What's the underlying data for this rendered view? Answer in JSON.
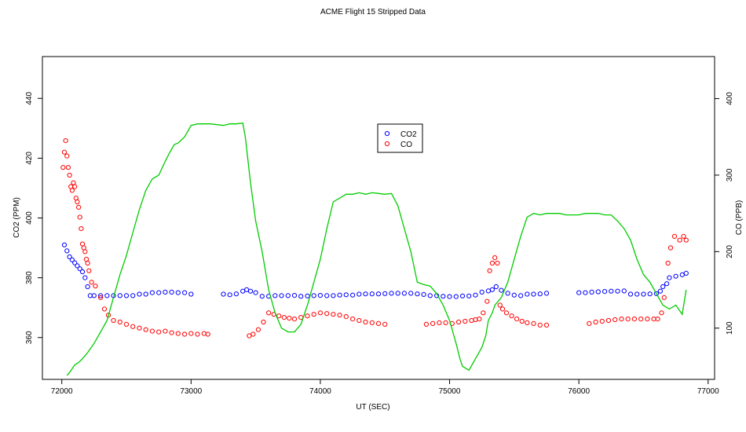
{
  "chart_data": {
    "type": "scatter",
    "title": "ACME Flight  15  Stripped Data",
    "xlabel": "UT (SEC)",
    "ylabel_left": "CO2 (PPM)",
    "ylabel_right": "CO (PPB)",
    "xlim": [
      71850,
      77050
    ],
    "ylim_left": [
      346,
      454
    ],
    "ylim_right": [
      33,
      455
    ],
    "x_ticks": [
      72000,
      73000,
      74000,
      75000,
      76000,
      77000
    ],
    "y_left_ticks": [
      360,
      380,
      400,
      420,
      440
    ],
    "y_right_ticks": [
      100,
      200,
      300,
      400
    ],
    "legend_position": "center-top",
    "legend": [
      {
        "label": "CO2",
        "color": "#0000ff"
      },
      {
        "label": "CO",
        "color": "#ff0000"
      }
    ],
    "series": [
      {
        "name": "CO2",
        "axis": "left",
        "color": "#0000ff",
        "marker": "circle",
        "x": [
          72020,
          72040,
          72060,
          72080,
          72100,
          72120,
          72140,
          72160,
          72180,
          72200,
          72220,
          72250,
          72300,
          72350,
          72400,
          72450,
          72500,
          72550,
          72600,
          72650,
          72700,
          72750,
          72800,
          72850,
          72900,
          72950,
          73000,
          73250,
          73300,
          73350,
          73400,
          73430,
          73460,
          73500,
          73550,
          73600,
          73650,
          73700,
          73750,
          73800,
          73850,
          73900,
          73950,
          74000,
          74050,
          74100,
          74150,
          74200,
          74250,
          74300,
          74350,
          74400,
          74450,
          74500,
          74550,
          74600,
          74650,
          74700,
          74750,
          74800,
          74850,
          74900,
          74950,
          75000,
          75050,
          75100,
          75150,
          75200,
          75250,
          75300,
          75330,
          75360,
          75400,
          75450,
          75500,
          75550,
          75600,
          75650,
          75700,
          75750,
          76000,
          76050,
          76100,
          76150,
          76200,
          76250,
          76300,
          76350,
          76400,
          76450,
          76500,
          76550,
          76600,
          76630,
          76650,
          76680,
          76700,
          76750,
          76800,
          76830
        ],
        "y": [
          391,
          389,
          387,
          386,
          385,
          384,
          383,
          382,
          380,
          377,
          374,
          374,
          374,
          374,
          374,
          374,
          374,
          374,
          374.5,
          374.5,
          375,
          375,
          375.2,
          375.2,
          375,
          375,
          374.5,
          374.5,
          374.3,
          374.6,
          375.5,
          376,
          375.5,
          375,
          373.8,
          373.8,
          374,
          374,
          374,
          374.1,
          373.8,
          373.9,
          374,
          374.1,
          374,
          374,
          374.2,
          374.3,
          374.2,
          374.5,
          374.6,
          374.6,
          374.6,
          374.7,
          374.8,
          374.8,
          374.8,
          374.8,
          374.6,
          374.4,
          374,
          374,
          373.8,
          373.7,
          373.7,
          373.9,
          373.9,
          374.2,
          375.2,
          375.6,
          376,
          377,
          375.8,
          374.8,
          374.2,
          374,
          374.5,
          374.5,
          374.6,
          374.8,
          375,
          375,
          375.2,
          375.3,
          375.4,
          375.5,
          375.5,
          375.6,
          374.5,
          374.5,
          374.5,
          374.6,
          374.7,
          375.5,
          377,
          378,
          380,
          380.5,
          381,
          381.5
        ]
      },
      {
        "name": "CO",
        "axis": "right",
        "color": "#ff0000",
        "marker": "circle",
        "x": [
          72010,
          72020,
          72030,
          72040,
          72050,
          72060,
          72070,
          72080,
          72090,
          72100,
          72110,
          72120,
          72130,
          72140,
          72150,
          72160,
          72170,
          72180,
          72190,
          72200,
          72210,
          72230,
          72260,
          72300,
          72330,
          72360,
          72400,
          72450,
          72500,
          72550,
          72600,
          72650,
          72700,
          72750,
          72800,
          72850,
          72900,
          72950,
          73000,
          73050,
          73100,
          73130,
          73450,
          73480,
          73520,
          73560,
          73600,
          73640,
          73680,
          73720,
          73760,
          73800,
          73850,
          73900,
          73950,
          74000,
          74050,
          74100,
          74150,
          74200,
          74250,
          74300,
          74350,
          74400,
          74450,
          74500,
          74820,
          74870,
          74920,
          74970,
          75020,
          75070,
          75120,
          75170,
          75200,
          75230,
          75260,
          75290,
          75310,
          75330,
          75350,
          75370,
          75390,
          75410,
          75440,
          75480,
          75520,
          75560,
          75600,
          75650,
          75700,
          75750,
          76080,
          76130,
          76180,
          76230,
          76280,
          76330,
          76380,
          76430,
          76480,
          76530,
          76580,
          76610,
          76640,
          76660,
          76690,
          76710,
          76740,
          76780,
          76810,
          76830
        ],
        "y": [
          310,
          330,
          345,
          325,
          310,
          300,
          285,
          280,
          290,
          285,
          270,
          265,
          258,
          245,
          230,
          210,
          205,
          200,
          190,
          185,
          175,
          160,
          155,
          140,
          125,
          117,
          110,
          108,
          105,
          102,
          100,
          98,
          96,
          95,
          96,
          94,
          93,
          92,
          93,
          92,
          93,
          92,
          90,
          92,
          98,
          108,
          120,
          118,
          116,
          114,
          113,
          112,
          114,
          116,
          118,
          120,
          119,
          118,
          117,
          115,
          112,
          110,
          108,
          107,
          106,
          105,
          105,
          106,
          107,
          107,
          106,
          108,
          109,
          110,
          111,
          112,
          120,
          135,
          175,
          185,
          192,
          185,
          130,
          125,
          120,
          116,
          112,
          109,
          107,
          106,
          104,
          104,
          106,
          108,
          109,
          110,
          111,
          112,
          112,
          112,
          112,
          112,
          112,
          112,
          120,
          140,
          185,
          205,
          220,
          215,
          220,
          215
        ]
      },
      {
        "name": "",
        "axis": "right",
        "color": "#00cc00",
        "marker": "line",
        "x": [
          72040,
          72060,
          72080,
          72100,
          72130,
          72160,
          72200,
          72250,
          72300,
          72350,
          72400,
          72450,
          72500,
          72550,
          72600,
          72650,
          72700,
          72750,
          72800,
          72830,
          72870,
          72900,
          72950,
          73000,
          73050,
          73100,
          73150,
          73200,
          73250,
          73300,
          73350,
          73400,
          73420,
          73440,
          73460,
          73500,
          73550,
          73600,
          73650,
          73700,
          73750,
          73800,
          73850,
          73900,
          73950,
          74000,
          74050,
          74100,
          74150,
          74200,
          74250,
          74300,
          74350,
          74400,
          74450,
          74500,
          74550,
          74600,
          74650,
          74700,
          74750,
          74800,
          74850,
          74900,
          74950,
          75000,
          75050,
          75080,
          75100,
          75150,
          75200,
          75250,
          75280,
          75300,
          75330,
          75350,
          75400,
          75450,
          75500,
          75550,
          75600,
          75650,
          75700,
          75750,
          75800,
          75850,
          75900,
          75950,
          76000,
          76050,
          76100,
          76150,
          76200,
          76250,
          76300,
          76350,
          76400,
          76450,
          76500,
          76550,
          76600,
          76650,
          76700,
          76750,
          76800,
          76830
        ],
        "y": [
          38,
          42,
          47,
          52,
          55,
          60,
          68,
          80,
          95,
          110,
          140,
          170,
          195,
          225,
          255,
          280,
          295,
          300,
          318,
          328,
          340,
          342,
          350,
          365,
          367,
          367,
          367,
          366,
          365,
          367,
          367,
          368,
          350,
          320,
          290,
          240,
          200,
          150,
          120,
          100,
          95,
          95,
          105,
          130,
          160,
          190,
          230,
          265,
          270,
          275,
          275,
          277,
          275,
          277,
          276,
          275,
          276,
          260,
          230,
          200,
          160,
          157,
          155,
          145,
          130,
          110,
          80,
          60,
          50,
          45,
          60,
          75,
          90,
          110,
          120,
          130,
          140,
          160,
          190,
          220,
          245,
          250,
          248,
          250,
          250,
          250,
          248,
          248,
          248,
          250,
          250,
          250,
          248,
          248,
          240,
          230,
          215,
          190,
          170,
          160,
          145,
          130,
          125,
          130,
          118,
          150
        ]
      }
    ]
  }
}
